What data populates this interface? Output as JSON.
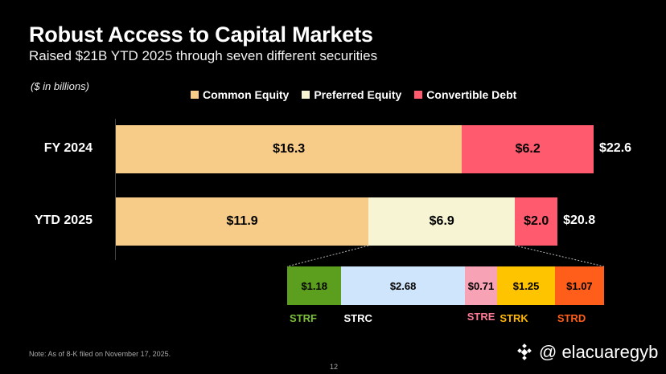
{
  "title": "Robust Access to Capital Markets",
  "subtitle": "Raised $21B YTD 2025 through seven different securities",
  "units_note": "($ in billions)",
  "legend": [
    {
      "label": "Common Equity",
      "color": "#F7CC88"
    },
    {
      "label": "Preferred Equity",
      "color": "#F7F4D4"
    },
    {
      "label": "Convertible Debt",
      "color": "#FF5A6E"
    }
  ],
  "chart_data": {
    "type": "bar",
    "orientation": "horizontal",
    "stacked": true,
    "categories": [
      "FY 2024",
      "YTD 2025"
    ],
    "series": [
      {
        "name": "Common Equity",
        "values": [
          16.3,
          11.9
        ],
        "labels": [
          "$16.3",
          "$11.9"
        ]
      },
      {
        "name": "Preferred Equity",
        "values": [
          0,
          6.9
        ],
        "labels": [
          "",
          "$6.9"
        ]
      },
      {
        "name": "Convertible Debt",
        "values": [
          6.2,
          2.0
        ],
        "labels": [
          "$6.2",
          "$2.0"
        ]
      }
    ],
    "totals": [
      "$22.6",
      "$20.8"
    ],
    "breakdown": {
      "of": "Preferred Equity",
      "items": [
        {
          "name": "STRF",
          "value": 1.18,
          "label": "$1.18",
          "color": "#5C9E1E",
          "name_color": "#7CC03A"
        },
        {
          "name": "STRC",
          "value": 2.68,
          "label": "$2.68",
          "color": "#CFE5FB",
          "name_color": "#FFFFFF"
        },
        {
          "name": "STRE",
          "value": 0.71,
          "label": "$0.71",
          "color": "#F7A3B5",
          "name_color": "#FF7B95"
        },
        {
          "name": "STRK",
          "value": 1.25,
          "label": "$1.25",
          "color": "#FFC400",
          "name_color": "#FFB800"
        },
        {
          "name": "STRD",
          "value": 1.07,
          "label": "$1.07",
          "color": "#FF5E1A",
          "name_color": "#FF5E1A"
        }
      ]
    }
  },
  "note": "Note: As of 8-K filed on November 17, 2025.",
  "page_number": "12",
  "watermark": "@ elacuaregyb"
}
